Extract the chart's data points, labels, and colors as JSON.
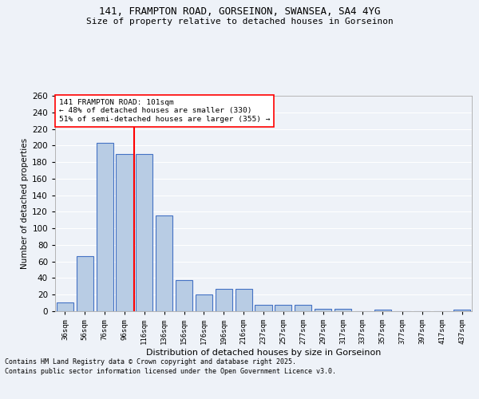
{
  "title_line1": "141, FRAMPTON ROAD, GORSEINON, SWANSEA, SA4 4YG",
  "title_line2": "Size of property relative to detached houses in Gorseinon",
  "xlabel": "Distribution of detached houses by size in Gorseinon",
  "ylabel": "Number of detached properties",
  "footer_line1": "Contains HM Land Registry data © Crown copyright and database right 2025.",
  "footer_line2": "Contains public sector information licensed under the Open Government Licence v3.0.",
  "categories": [
    "36sqm",
    "56sqm",
    "76sqm",
    "96sqm",
    "116sqm",
    "136sqm",
    "156sqm",
    "176sqm",
    "196sqm",
    "216sqm",
    "237sqm",
    "257sqm",
    "277sqm",
    "297sqm",
    "317sqm",
    "337sqm",
    "357sqm",
    "377sqm",
    "397sqm",
    "417sqm",
    "437sqm"
  ],
  "values": [
    11,
    66,
    203,
    190,
    190,
    116,
    38,
    20,
    27,
    27,
    8,
    8,
    8,
    3,
    3,
    0,
    2,
    0,
    0,
    0,
    2
  ],
  "bar_color": "#b8cce4",
  "bar_edge_color": "#4472c4",
  "bg_color": "#eef2f8",
  "grid_color": "#ffffff",
  "vline_color": "red",
  "vline_x": 3.5,
  "annotation_text": "141 FRAMPTON ROAD: 101sqm\n← 48% of detached houses are smaller (330)\n51% of semi-detached houses are larger (355) →",
  "annotation_box_color": "white",
  "annotation_box_edge_color": "red",
  "ylim": [
    0,
    260
  ],
  "yticks": [
    0,
    20,
    40,
    60,
    80,
    100,
    120,
    140,
    160,
    180,
    200,
    220,
    240,
    260
  ]
}
